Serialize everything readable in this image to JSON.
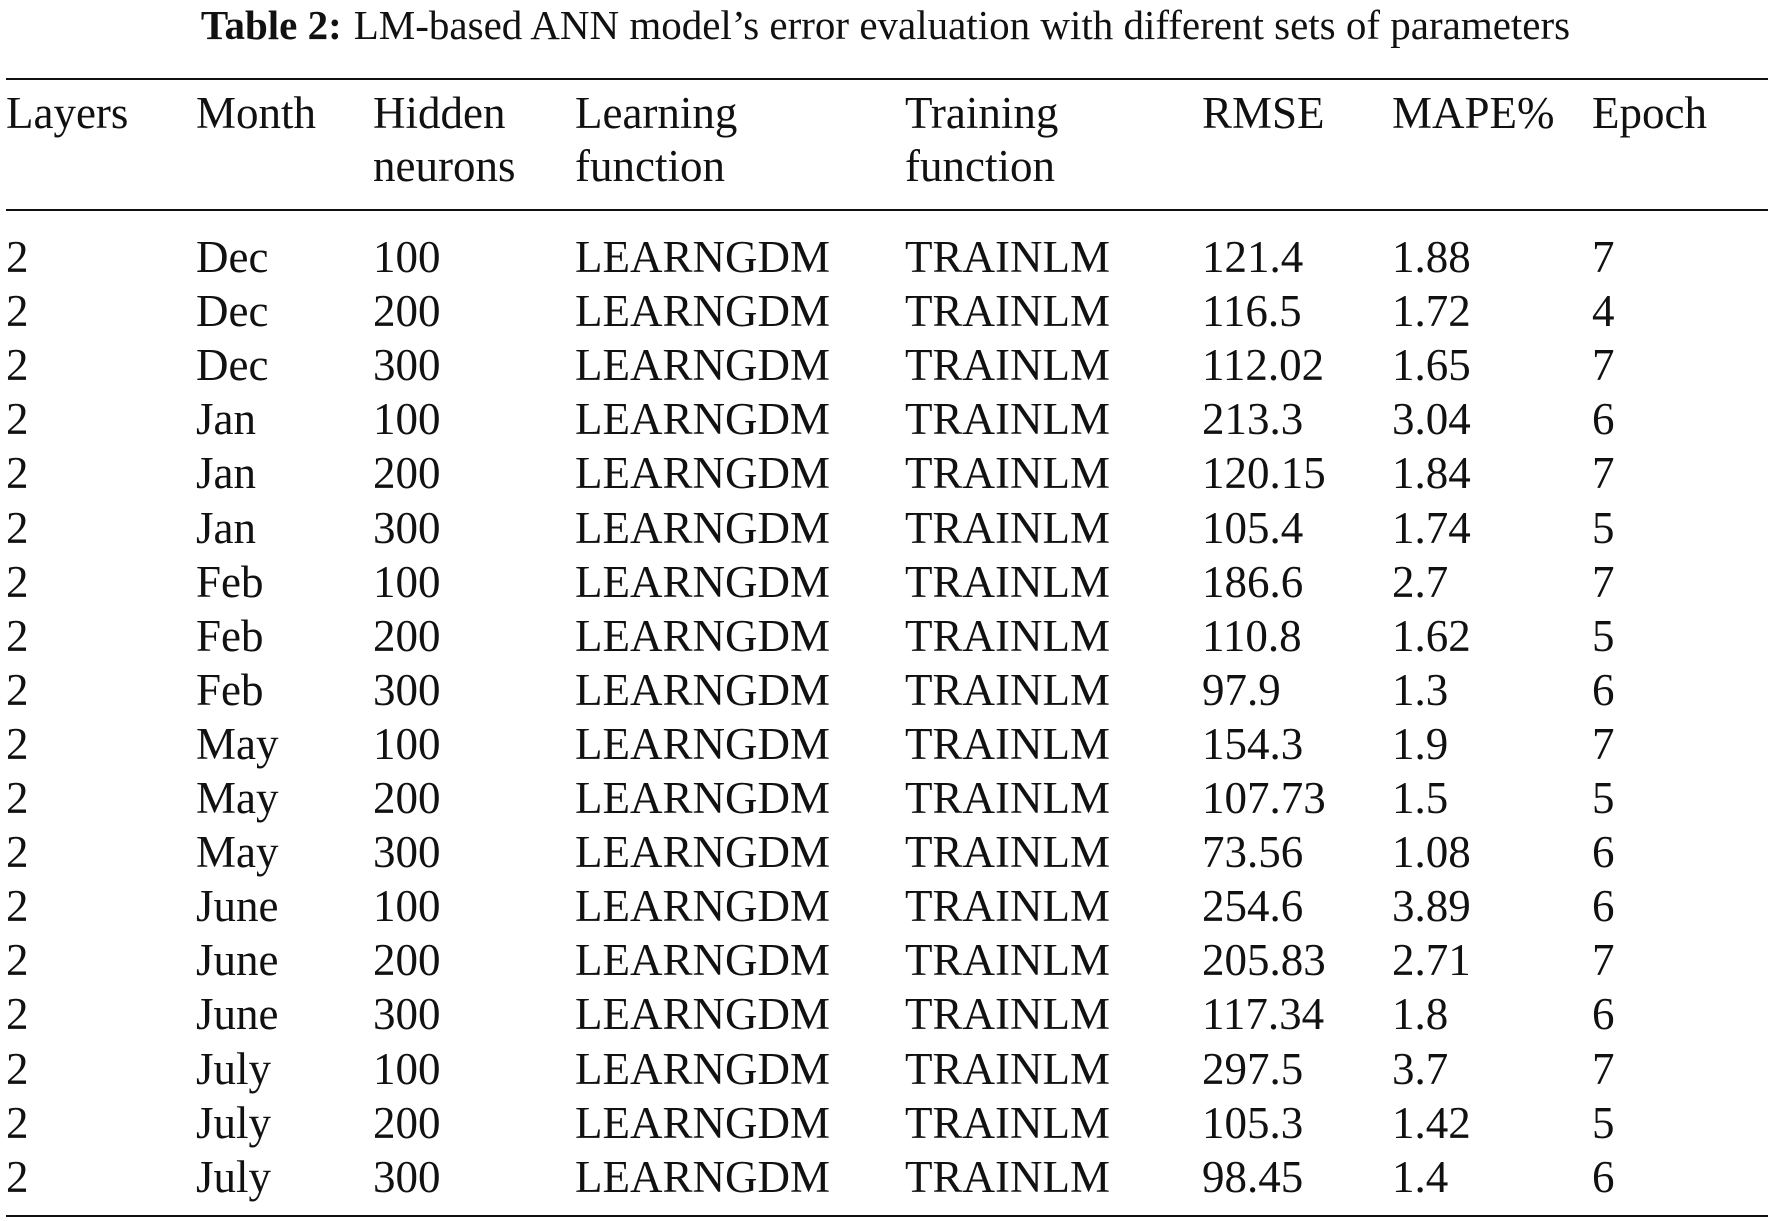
{
  "caption": {
    "label": "Table 2:",
    "text": "LM-based ANN model’s error evaluation with different sets of parameters"
  },
  "table": {
    "headers": [
      [
        "Layers"
      ],
      [
        "Month"
      ],
      [
        "Hidden",
        "neurons"
      ],
      [
        "Learning",
        "function"
      ],
      [
        "Training",
        "function"
      ],
      [
        "RMSE"
      ],
      [
        "MAPE%"
      ],
      [
        "Epoch"
      ]
    ],
    "rows": [
      [
        2,
        "Dec",
        100,
        "LEARNGDM",
        "TRAINLM",
        121.4,
        1.88,
        7
      ],
      [
        2,
        "Dec",
        200,
        "LEARNGDM",
        "TRAINLM",
        116.5,
        1.72,
        4
      ],
      [
        2,
        "Dec",
        300,
        "LEARNGDM",
        "TRAINLM",
        112.02,
        1.65,
        7
      ],
      [
        2,
        "Jan",
        100,
        "LEARNGDM",
        "TRAINLM",
        213.3,
        3.04,
        6
      ],
      [
        2,
        "Jan",
        200,
        "LEARNGDM",
        "TRAINLM",
        120.15,
        1.84,
        7
      ],
      [
        2,
        "Jan",
        300,
        "LEARNGDM",
        "TRAINLM",
        105.4,
        1.74,
        5
      ],
      [
        2,
        "Feb",
        100,
        "LEARNGDM",
        "TRAINLM",
        186.6,
        2.7,
        7
      ],
      [
        2,
        "Feb",
        200,
        "LEARNGDM",
        "TRAINLM",
        110.8,
        1.62,
        5
      ],
      [
        2,
        "Feb",
        300,
        "LEARNGDM",
        "TRAINLM",
        97.9,
        1.3,
        6
      ],
      [
        2,
        "May",
        100,
        "LEARNGDM",
        "TRAINLM",
        154.3,
        1.9,
        7
      ],
      [
        2,
        "May",
        200,
        "LEARNGDM",
        "TRAINLM",
        107.73,
        1.5,
        5
      ],
      [
        2,
        "May",
        300,
        "LEARNGDM",
        "TRAINLM",
        73.56,
        1.08,
        6
      ],
      [
        2,
        "June",
        100,
        "LEARNGDM",
        "TRAINLM",
        254.6,
        3.89,
        6
      ],
      [
        2,
        "June",
        200,
        "LEARNGDM",
        "TRAINLM",
        205.83,
        2.71,
        7
      ],
      [
        2,
        "June",
        300,
        "LEARNGDM",
        "TRAINLM",
        117.34,
        1.8,
        6
      ],
      [
        2,
        "July",
        100,
        "LEARNGDM",
        "TRAINLM",
        297.5,
        3.7,
        7
      ],
      [
        2,
        "July",
        200,
        "LEARNGDM",
        "TRAINLM",
        105.3,
        1.42,
        5
      ],
      [
        2,
        "July",
        300,
        "LEARNGDM",
        "TRAINLM",
        98.45,
        1.4,
        6
      ]
    ]
  }
}
